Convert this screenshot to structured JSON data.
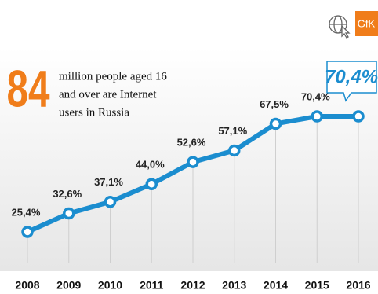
{
  "logo": "GfK",
  "headline": {
    "number": "84",
    "lines": [
      "million people aged 16",
      "and over are Internet",
      "users in Russia"
    ]
  },
  "chart_data": {
    "type": "line",
    "categories": [
      "2008",
      "2009",
      "2010",
      "2011",
      "2012",
      "2013",
      "2014",
      "2015",
      "2016"
    ],
    "values": [
      25.4,
      32.6,
      37.1,
      44.0,
      52.6,
      57.1,
      67.5,
      70.4,
      70.4
    ],
    "value_labels": [
      "25,4%",
      "32,6%",
      "37,1%",
      "44,0%",
      "52,6%",
      "57,1%",
      "67,5%",
      "70,4%",
      "70,4%"
    ],
    "color": "#1b8dcf",
    "grid": true
  }
}
